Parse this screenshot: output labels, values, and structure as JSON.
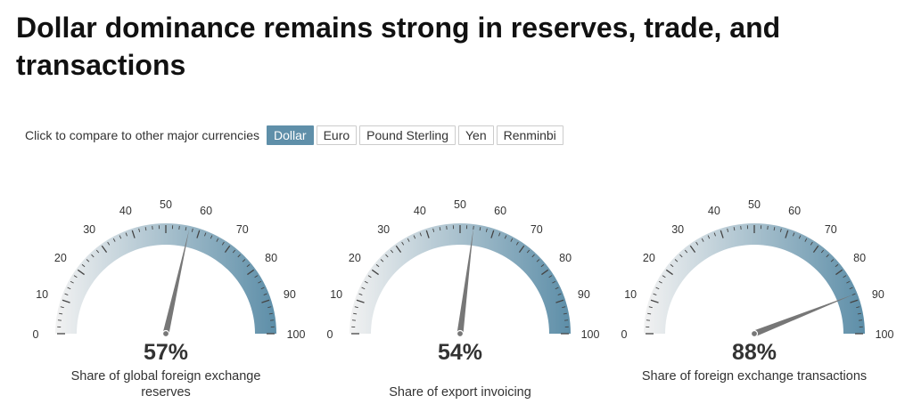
{
  "title": "Dollar dominance remains strong in reserves, trade, and transactions",
  "controls": {
    "label": "Click to compare to other major currencies",
    "options": [
      "Dollar",
      "Euro",
      "Pound Sterling",
      "Yen",
      "Renminbi"
    ],
    "selected": "Dollar"
  },
  "colors": {
    "gauge_start": "#f2f2f2",
    "gauge_end": "#5d8ea8",
    "needle": "#777777",
    "active_button": "#5f8fa9"
  },
  "chart_data": [
    {
      "type": "gauge",
      "min": 0,
      "max": 100,
      "ticks": [
        0,
        10,
        20,
        30,
        40,
        50,
        60,
        70,
        80,
        90,
        100
      ],
      "value": 57,
      "value_label": "57%",
      "caption": "Share of global foreign exchange reserves"
    },
    {
      "type": "gauge",
      "min": 0,
      "max": 100,
      "ticks": [
        0,
        10,
        20,
        30,
        40,
        50,
        60,
        70,
        80,
        90,
        100
      ],
      "value": 54,
      "value_label": "54%",
      "caption": "Share of export invoicing"
    },
    {
      "type": "gauge",
      "min": 0,
      "max": 100,
      "ticks": [
        0,
        10,
        20,
        30,
        40,
        50,
        60,
        70,
        80,
        90,
        100
      ],
      "value": 88,
      "value_label": "88%",
      "caption": "Share of foreign exchange transactions"
    }
  ]
}
